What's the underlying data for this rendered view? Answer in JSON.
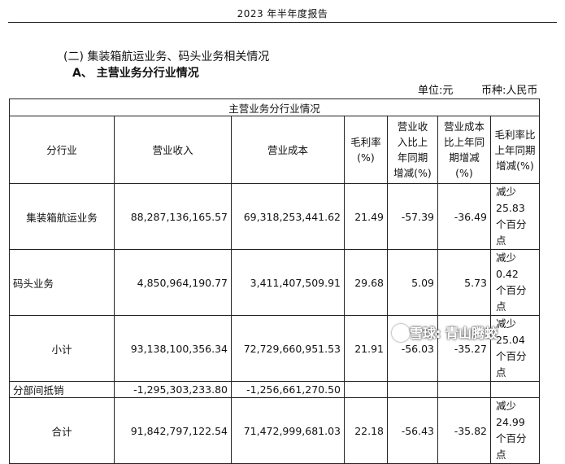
{
  "header": {
    "title": "2023 年半年度报告"
  },
  "section": {
    "heading": "(二) 集装箱航运业务、码头业务相关情况",
    "subheading": "A、 主营业务分行业情况"
  },
  "unit": {
    "unit_label": "单位:元",
    "currency_label": "币种:人民币"
  },
  "table": {
    "title": "主营业务分行业情况",
    "headers": {
      "industry": "分行业",
      "revenue": "营业收入",
      "cost": "营业成本",
      "gross_margin": [
        "毛利率",
        "(%)"
      ],
      "revenue_change": [
        "营业收",
        "入比上",
        "年同期",
        "增减(%)"
      ],
      "cost_change": [
        "营业成本",
        "比上年同",
        "期增减",
        "(%)"
      ],
      "margin_change": [
        "毛利率比",
        "上年同期",
        "增减(%)"
      ]
    },
    "rows": [
      {
        "industry": "集装箱航运业务",
        "revenue": "88,287,136,165.57",
        "cost": "69,318,253,441.62",
        "gross_margin": "21.49",
        "revenue_change": "-57.39",
        "cost_change": "-36.49",
        "margin_change": [
          "减少 25.83",
          "个百分点"
        ]
      },
      {
        "industry": "码头业务",
        "revenue": "4,850,964,190.77",
        "cost": "3,411,407,509.91",
        "gross_margin": "29.68",
        "revenue_change": "5.09",
        "cost_change": "5.73",
        "margin_change": [
          "减少 0.42",
          "个百分点"
        ]
      },
      {
        "industry": "小计",
        "revenue": "93,138,100,356.34",
        "cost": "72,729,660,951.53",
        "gross_margin": "21.91",
        "revenue_change": "-56.03",
        "cost_change": "-35.27",
        "margin_change": [
          "减少 25.04",
          "个百分点"
        ]
      },
      {
        "industry": "分部间抵销",
        "revenue": "-1,295,303,233.80",
        "cost": "-1,256,661,270.50",
        "gross_margin": "",
        "revenue_change": "",
        "cost_change": "",
        "margin_change": [
          "",
          ""
        ]
      },
      {
        "industry": "合计",
        "revenue": "91,842,797,122.54",
        "cost": "71,472,999,681.03",
        "gross_margin": "22.18",
        "revenue_change": "-56.43",
        "cost_change": "-35.82",
        "margin_change": [
          "减少 24.99",
          "个百分点"
        ]
      }
    ]
  },
  "watermark": {
    "text": "雪球: 青山腾蛟"
  }
}
